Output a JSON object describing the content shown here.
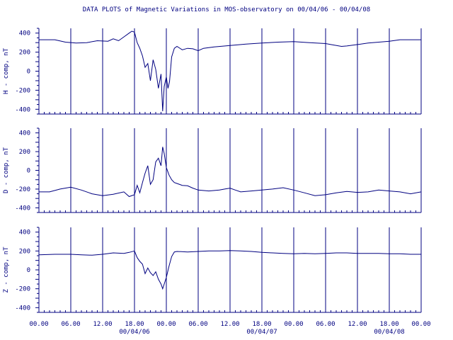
{
  "title": "DATA PLOTS of Magnetic Variations in MOS-observatory on 00/04/06 - 00/04/08",
  "colors": {
    "line": "#000080",
    "axis": "#000080",
    "background": "#ffffff"
  },
  "chart_data": [
    {
      "type": "line",
      "ylabel": "H - comp, nT",
      "ylim": [
        -450,
        450
      ],
      "yticks": [
        -400,
        -200,
        0,
        200,
        400
      ],
      "xlim": [
        0,
        72
      ],
      "grid": "vertical lines every 6 hours",
      "points": [
        [
          0,
          330
        ],
        [
          3,
          330
        ],
        [
          5,
          305
        ],
        [
          7,
          295
        ],
        [
          9,
          300
        ],
        [
          11,
          320
        ],
        [
          13,
          315
        ],
        [
          14,
          340
        ],
        [
          15,
          320
        ],
        [
          16,
          360
        ],
        [
          17,
          400
        ],
        [
          17.5,
          420
        ],
        [
          18,
          410
        ],
        [
          18.5,
          300
        ],
        [
          19,
          240
        ],
        [
          19.5,
          160
        ],
        [
          20,
          40
        ],
        [
          20.5,
          80
        ],
        [
          21,
          -100
        ],
        [
          21.5,
          120
        ],
        [
          22,
          20
        ],
        [
          22.5,
          -180
        ],
        [
          23,
          -30
        ],
        [
          23.3,
          -420
        ],
        [
          23.6,
          -160
        ],
        [
          24,
          -60
        ],
        [
          24.3,
          -180
        ],
        [
          24.6,
          -110
        ],
        [
          25,
          150
        ],
        [
          25.5,
          240
        ],
        [
          26,
          260
        ],
        [
          27,
          225
        ],
        [
          28,
          240
        ],
        [
          29,
          235
        ],
        [
          30,
          215
        ],
        [
          31,
          240
        ],
        [
          33,
          255
        ],
        [
          36,
          270
        ],
        [
          39,
          285
        ],
        [
          42,
          295
        ],
        [
          45,
          305
        ],
        [
          48,
          310
        ],
        [
          51,
          300
        ],
        [
          54,
          290
        ],
        [
          55,
          280
        ],
        [
          57,
          260
        ],
        [
          58,
          265
        ],
        [
          60,
          280
        ],
        [
          62,
          295
        ],
        [
          64,
          305
        ],
        [
          66,
          315
        ],
        [
          68,
          330
        ],
        [
          70,
          330
        ],
        [
          72,
          330
        ]
      ]
    },
    {
      "type": "line",
      "ylabel": "D - comp, nT",
      "ylim": [
        -450,
        450
      ],
      "yticks": [
        -400,
        -200,
        0,
        200,
        400
      ],
      "xlim": [
        0,
        72
      ],
      "grid": "vertical lines every 6 hours",
      "points": [
        [
          0,
          -230
        ],
        [
          2,
          -230
        ],
        [
          4,
          -200
        ],
        [
          6,
          -180
        ],
        [
          8,
          -210
        ],
        [
          10,
          -250
        ],
        [
          12,
          -270
        ],
        [
          14,
          -255
        ],
        [
          16,
          -230
        ],
        [
          17,
          -280
        ],
        [
          18,
          -260
        ],
        [
          18.5,
          -160
        ],
        [
          19,
          -240
        ],
        [
          19.5,
          -130
        ],
        [
          20,
          -30
        ],
        [
          20.5,
          50
        ],
        [
          21,
          -150
        ],
        [
          21.5,
          -100
        ],
        [
          22,
          90
        ],
        [
          22.5,
          130
        ],
        [
          23,
          50
        ],
        [
          23.3,
          250
        ],
        [
          23.6,
          180
        ],
        [
          24,
          30
        ],
        [
          24.5,
          -50
        ],
        [
          25,
          -100
        ],
        [
          25.5,
          -130
        ],
        [
          26,
          -140
        ],
        [
          27,
          -160
        ],
        [
          28,
          -165
        ],
        [
          29,
          -190
        ],
        [
          30,
          -210
        ],
        [
          32,
          -220
        ],
        [
          34,
          -210
        ],
        [
          35,
          -200
        ],
        [
          36,
          -190
        ],
        [
          37,
          -210
        ],
        [
          38,
          -230
        ],
        [
          40,
          -220
        ],
        [
          42,
          -210
        ],
        [
          44,
          -200
        ],
        [
          46,
          -185
        ],
        [
          48,
          -210
        ],
        [
          50,
          -240
        ],
        [
          52,
          -270
        ],
        [
          54,
          -260
        ],
        [
          56,
          -240
        ],
        [
          58,
          -225
        ],
        [
          60,
          -235
        ],
        [
          62,
          -230
        ],
        [
          64,
          -210
        ],
        [
          66,
          -220
        ],
        [
          68,
          -230
        ],
        [
          70,
          -250
        ],
        [
          72,
          -230
        ]
      ]
    },
    {
      "type": "line",
      "ylabel": "Z - comp, nT",
      "ylim": [
        -450,
        450
      ],
      "yticks": [
        -400,
        -200,
        0,
        200,
        400
      ],
      "xlim": [
        0,
        72
      ],
      "grid": "vertical lines every 6 hours",
      "points": [
        [
          0,
          160
        ],
        [
          3,
          165
        ],
        [
          6,
          165
        ],
        [
          8,
          160
        ],
        [
          10,
          155
        ],
        [
          12,
          165
        ],
        [
          14,
          180
        ],
        [
          16,
          175
        ],
        [
          17,
          185
        ],
        [
          18,
          200
        ],
        [
          18.5,
          130
        ],
        [
          19,
          90
        ],
        [
          19.5,
          60
        ],
        [
          20,
          -40
        ],
        [
          20.5,
          20
        ],
        [
          21,
          -30
        ],
        [
          21.5,
          -60
        ],
        [
          22,
          -20
        ],
        [
          22.5,
          -100
        ],
        [
          23,
          -150
        ],
        [
          23.3,
          -200
        ],
        [
          23.6,
          -150
        ],
        [
          24,
          -80
        ],
        [
          24.5,
          40
        ],
        [
          25,
          140
        ],
        [
          25.5,
          190
        ],
        [
          26,
          195
        ],
        [
          28,
          190
        ],
        [
          30,
          195
        ],
        [
          32,
          200
        ],
        [
          34,
          200
        ],
        [
          36,
          205
        ],
        [
          38,
          200
        ],
        [
          40,
          195
        ],
        [
          42,
          185
        ],
        [
          44,
          180
        ],
        [
          46,
          175
        ],
        [
          48,
          170
        ],
        [
          50,
          175
        ],
        [
          52,
          170
        ],
        [
          54,
          175
        ],
        [
          56,
          180
        ],
        [
          58,
          180
        ],
        [
          60,
          175
        ],
        [
          62,
          175
        ],
        [
          64,
          175
        ],
        [
          66,
          170
        ],
        [
          68,
          170
        ],
        [
          70,
          165
        ],
        [
          72,
          165
        ]
      ]
    }
  ],
  "x_axis": {
    "tick_labels": [
      "00.00",
      "06.00",
      "12.00",
      "18.00",
      "00.00",
      "06.00",
      "12.00",
      "18.00",
      "00.00",
      "06.00",
      "12.00",
      "18.00",
      "00.00"
    ],
    "date_labels": [
      "00/04/06",
      "00/04/07",
      "00/04/08"
    ]
  }
}
